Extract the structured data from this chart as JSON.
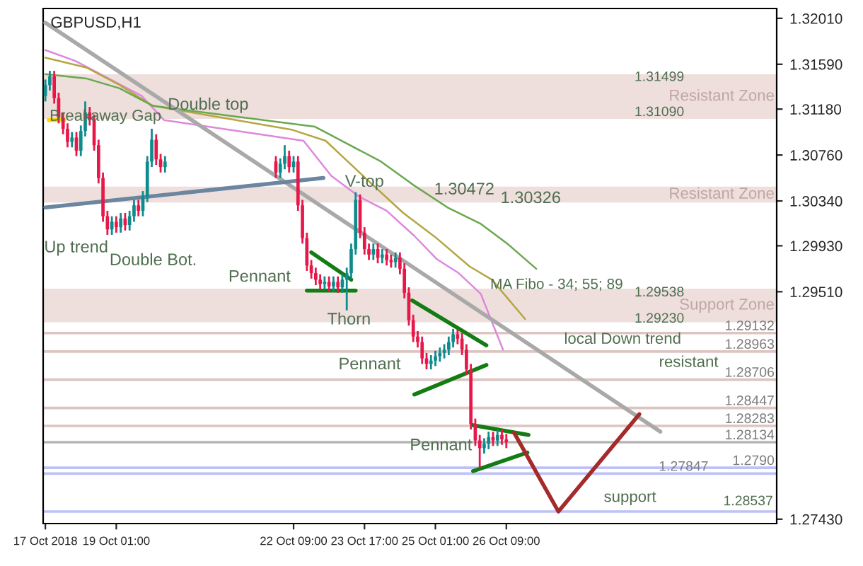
{
  "chart_data": {
    "type": "candlestick",
    "title": "GBPUSD,H1",
    "xlim": [
      "2018-10-17T16:00",
      "2018-10-31T11:00"
    ],
    "ylim": [
      1.2739,
      1.321
    ],
    "xticks": [
      {
        "value": "2018-10-17T17:00",
        "label": "17 Oct 2018"
      },
      {
        "value": "2018-10-19T01:00",
        "label": "19 Oct 01:00"
      },
      {
        "value": "2018-10-22T09:00",
        "label": "22 Oct 09:00"
      },
      {
        "value": "2018-10-23T17:00",
        "label": "23 Oct 17:00"
      },
      {
        "value": "2018-10-25T01:00",
        "label": "25 Oct 01:00"
      },
      {
        "value": "2018-10-26T09:00",
        "label": "26 Oct 09:00"
      }
    ],
    "yticks": [
      {
        "value": 1.3201,
        "label": "1.32010"
      },
      {
        "value": 1.3159,
        "label": "1.31590"
      },
      {
        "value": 1.3118,
        "label": "1.31180"
      },
      {
        "value": 1.3076,
        "label": "1.30760"
      },
      {
        "value": 1.3034,
        "label": "1.30340"
      },
      {
        "value": 1.2993,
        "label": "1.29930"
      },
      {
        "value": 1.2951,
        "label": "1.29510"
      },
      {
        "value": 1.2743,
        "label": "1.27430"
      }
    ],
    "grid": false,
    "legend": false,
    "series": [
      {
        "color": "#0f8b8d",
        "x": [
          "2018-10-17T17:00",
          "2018-10-17T19:00",
          "2018-10-18T05:00",
          "2018-10-18T09:00",
          "2018-10-18T11:00",
          "2018-10-18T23:00",
          "2018-10-19T03:00",
          "2018-10-19T07:00",
          "2018-10-19T09:00",
          "2018-10-19T13:00",
          "2018-10-19T15:00",
          "2018-10-19T17:00",
          "2018-10-19T23:00",
          "2018-10-22T03:00",
          "2018-10-22T05:00",
          "2018-10-22T09:00",
          "2018-10-22T23:00",
          "2018-10-23T03:00",
          "2018-10-23T07:00",
          "2018-10-23T09:00",
          "2018-10-23T11:00",
          "2018-10-23T13:00",
          "2018-10-23T21:00",
          "2018-10-24T01:00",
          "2018-10-24T07:00",
          "2018-10-24T23:00",
          "2018-10-25T01:00",
          "2018-10-25T03:00",
          "2018-10-25T05:00",
          "2018-10-25T07:00",
          "2018-10-25T09:00",
          "2018-10-25T23:00",
          "2018-10-26T01:00",
          "2018-10-26T05:00"
        ],
        "ohlc": [
          [
            1.313,
            1.3145,
            1.3125,
            1.314
          ],
          [
            1.314,
            1.3153,
            1.3135,
            1.3148
          ],
          [
            1.3088,
            1.3097,
            1.3083,
            1.3092
          ],
          [
            1.308,
            1.3103,
            1.3075,
            1.3098
          ],
          [
            1.3098,
            1.3125,
            1.3093,
            1.3115
          ],
          [
            1.3008,
            1.302,
            1.3003,
            1.3015
          ],
          [
            1.301,
            1.3023,
            1.3005,
            1.3018
          ],
          [
            1.3012,
            1.3025,
            1.3007,
            1.302
          ],
          [
            1.302,
            1.3035,
            1.3015,
            1.303
          ],
          [
            1.3025,
            1.3043,
            1.302,
            1.3038
          ],
          [
            1.3038,
            1.3075,
            1.3033,
            1.307
          ],
          [
            1.307,
            1.31,
            1.3065,
            1.309
          ],
          [
            1.3065,
            1.3075,
            1.306,
            1.307
          ],
          [
            1.306,
            1.3073,
            1.3055,
            1.3068
          ],
          [
            1.3068,
            1.3085,
            1.3063,
            1.3075
          ],
          [
            1.3065,
            1.3075,
            1.306,
            1.307
          ],
          [
            1.2958,
            1.2965,
            1.2953,
            1.296
          ],
          [
            1.2956,
            1.2965,
            1.2951,
            1.296
          ],
          [
            1.2955,
            1.2967,
            1.295,
            1.2962
          ],
          [
            1.2962,
            1.2973,
            1.2934,
            1.2968
          ],
          [
            1.2968,
            1.2995,
            1.2963,
            1.299
          ],
          [
            1.299,
            1.3042,
            1.2985,
            1.3035
          ],
          [
            1.2985,
            1.2995,
            1.298,
            1.299
          ],
          [
            1.2982,
            1.299,
            1.2977,
            1.2985
          ],
          [
            1.2978,
            1.2987,
            1.2973,
            1.2982
          ],
          [
            1.2885,
            1.2893,
            1.288,
            1.2888
          ],
          [
            1.2888,
            1.2897,
            1.2883,
            1.2892
          ],
          [
            1.2892,
            1.29,
            1.2887,
            1.2895
          ],
          [
            1.2895,
            1.2903,
            1.289,
            1.2898
          ],
          [
            1.2898,
            1.291,
            1.2893,
            1.2905
          ],
          [
            1.2905,
            1.2917,
            1.29,
            1.2912
          ],
          [
            1.2808,
            1.2817,
            1.2803,
            1.2812
          ],
          [
            1.2812,
            1.2823,
            1.2807,
            1.2818
          ],
          [
            1.2815,
            1.2825,
            1.281,
            1.282
          ]
        ]
      },
      {
        "color": "#e8174a",
        "x": [
          "2018-10-17T21:00",
          "2018-10-17T23:00",
          "2018-10-18T01:00",
          "2018-10-18T03:00",
          "2018-10-18T07:00",
          "2018-10-18T13:00",
          "2018-10-18T15:00",
          "2018-10-18T17:00",
          "2018-10-18T19:00",
          "2018-10-18T21:00",
          "2018-10-19T01:00",
          "2018-10-19T05:00",
          "2018-10-19T11:00",
          "2018-10-19T19:00",
          "2018-10-19T21:00",
          "2018-10-22T01:00",
          "2018-10-22T07:00",
          "2018-10-22T11:00",
          "2018-10-22T13:00",
          "2018-10-22T15:00",
          "2018-10-22T17:00",
          "2018-10-22T19:00",
          "2018-10-22T21:00",
          "2018-10-23T01:00",
          "2018-10-23T05:00",
          "2018-10-23T15:00",
          "2018-10-23T17:00",
          "2018-10-23T19:00",
          "2018-10-23T23:00",
          "2018-10-24T03:00",
          "2018-10-24T05:00",
          "2018-10-24T09:00",
          "2018-10-24T11:00",
          "2018-10-24T13:00",
          "2018-10-24T15:00",
          "2018-10-24T17:00",
          "2018-10-24T19:00",
          "2018-10-24T21:00",
          "2018-10-25T11:00",
          "2018-10-25T13:00",
          "2018-10-25T15:00",
          "2018-10-25T17:00",
          "2018-10-25T19:00",
          "2018-10-25T21:00",
          "2018-10-26T03:00",
          "2018-10-26T07:00",
          "2018-10-26T09:00"
        ],
        "ohlc": [
          [
            1.3148,
            1.3153,
            1.3123,
            1.3128
          ],
          [
            1.3128,
            1.3133,
            1.3105,
            1.311
          ],
          [
            1.311,
            1.3115,
            1.3095,
            1.31
          ],
          [
            1.31,
            1.3105,
            1.3083,
            1.3088
          ],
          [
            1.3092,
            1.3097,
            1.3075,
            1.308
          ],
          [
            1.3115,
            1.312,
            1.3103,
            1.3108
          ],
          [
            1.3108,
            1.3113,
            1.308,
            1.3085
          ],
          [
            1.3085,
            1.309,
            1.305,
            1.3055
          ],
          [
            1.3055,
            1.306,
            1.3015,
            1.302
          ],
          [
            1.302,
            1.3025,
            1.3003,
            1.3008
          ],
          [
            1.3015,
            1.302,
            1.3005,
            1.301
          ],
          [
            1.3018,
            1.3023,
            1.3007,
            1.3012
          ],
          [
            1.303,
            1.3035,
            1.302,
            1.3025
          ],
          [
            1.309,
            1.3095,
            1.3067,
            1.3072
          ],
          [
            1.3072,
            1.3077,
            1.306,
            1.3065
          ],
          [
            1.307,
            1.3075,
            1.3055,
            1.306
          ],
          [
            1.3075,
            1.308,
            1.306,
            1.3065
          ],
          [
            1.307,
            1.3075,
            1.3025,
            1.303
          ],
          [
            1.303,
            1.3035,
            1.2995,
            1.3
          ],
          [
            1.3,
            1.3005,
            1.297,
            1.2975
          ],
          [
            1.2975,
            1.298,
            1.2963,
            1.2968
          ],
          [
            1.2968,
            1.2973,
            1.2957,
            1.2962
          ],
          [
            1.2962,
            1.2967,
            1.2953,
            1.2958
          ],
          [
            1.296,
            1.2965,
            1.2951,
            1.2956
          ],
          [
            1.296,
            1.2965,
            1.295,
            1.2955
          ],
          [
            1.3035,
            1.304,
            1.3,
            1.3005
          ],
          [
            1.3005,
            1.301,
            1.2985,
            1.299
          ],
          [
            1.299,
            1.2995,
            1.298,
            1.2985
          ],
          [
            1.299,
            1.2995,
            1.2977,
            1.2982
          ],
          [
            1.2985,
            1.299,
            1.2975,
            1.298
          ],
          [
            1.298,
            1.2985,
            1.2973,
            1.2978
          ],
          [
            1.2982,
            1.2987,
            1.2967,
            1.2972
          ],
          [
            1.2972,
            1.2977,
            1.2945,
            1.295
          ],
          [
            1.295,
            1.2955,
            1.292,
            1.2925
          ],
          [
            1.2925,
            1.293,
            1.2905,
            1.291
          ],
          [
            1.291,
            1.2915,
            1.29,
            1.2905
          ],
          [
            1.2905,
            1.291,
            1.2885,
            1.289
          ],
          [
            1.289,
            1.2895,
            1.288,
            1.2885
          ],
          [
            1.2912,
            1.2917,
            1.2903,
            1.2908
          ],
          [
            1.2908,
            1.2913,
            1.2893,
            1.2898
          ],
          [
            1.2898,
            1.2903,
            1.2875,
            1.288
          ],
          [
            1.288,
            1.2885,
            1.2825,
            1.283
          ],
          [
            1.283,
            1.2835,
            1.281,
            1.2815
          ],
          [
            1.2815,
            1.282,
            1.279,
            1.2808
          ],
          [
            1.2818,
            1.2823,
            1.281,
            1.2815
          ],
          [
            1.282,
            1.2825,
            1.2811,
            1.2816
          ],
          [
            1.2816,
            1.2821,
            1.2808,
            1.28134
          ]
        ]
      },
      {
        "type": "line",
        "color": "#dd88dd",
        "x": [
          "2018-10-17T17:00",
          "2018-10-18T06:30",
          "2018-10-18T21:30",
          "2018-10-19T12:30",
          "2018-10-19T22:30",
          "2018-10-22T13:30",
          "2018-10-23T02:00",
          "2018-10-23T14:30",
          "2018-10-24T03:00",
          "2018-10-24T15:30",
          "2018-10-25T01:30",
          "2018-10-25T11:30",
          "2018-10-25T21:30",
          "2018-10-26T07:30"
        ],
        "values": [
          1.3172,
          1.3162,
          1.3146,
          1.313,
          1.3108,
          1.3089,
          1.3057,
          1.3038,
          1.3025,
          1.3002,
          1.2981,
          1.2968,
          1.2949,
          1.2898
        ]
      },
      {
        "type": "line",
        "color": "#b5a642",
        "x": [
          "2018-10-17T17:00",
          "2018-10-18T11:30",
          "2018-10-19T02:30",
          "2018-10-19T17:30",
          "2018-10-22T08:30",
          "2018-10-22T23:30",
          "2018-10-23T09:30",
          "2018-10-23T19:30",
          "2018-10-24T10:30",
          "2018-10-25T01:30",
          "2018-10-25T16:30",
          "2018-10-26T02:30",
          "2018-10-26T17:30"
        ],
        "values": [
          1.3165,
          1.3156,
          1.314,
          1.3121,
          1.3099,
          1.3089,
          1.307,
          1.3051,
          1.3023,
          1.3,
          1.2974,
          1.2962,
          1.2926
        ]
      },
      {
        "type": "line",
        "color": "#6aa84f",
        "x": [
          "2018-10-17T17:00",
          "2018-10-18T11:30",
          "2018-10-19T02:30",
          "2018-10-19T17:30",
          "2018-10-22T18:30",
          "2018-10-23T09:30",
          "2018-10-24T00:30",
          "2018-10-24T15:30",
          "2018-10-25T06:30",
          "2018-10-25T21:30",
          "2018-10-26T10:00",
          "2018-10-26T22:30"
        ],
        "values": [
          1.315,
          1.3146,
          1.3137,
          1.3121,
          1.3102,
          1.3086,
          1.307,
          1.3048,
          1.3028,
          1.3013,
          1.2994,
          1.2972
        ]
      },
      {
        "type": "line",
        "color": "#a9a9a9",
        "x": [
          "2018-10-17T17:00",
          "2018-10-29T06:30"
        ],
        "values": [
          1.3197,
          1.2823
        ]
      },
      {
        "type": "line",
        "color": "#6c86a0",
        "x": [
          "2018-10-17T17:00",
          "2018-10-22T22:30"
        ],
        "values": [
          1.3028,
          1.3055
        ]
      },
      {
        "type": "line",
        "color": "#ffd700",
        "x": [
          "2018-10-17T18:30",
          "2018-10-18T01:30"
        ],
        "values": [
          1.3108,
          1.3108
        ]
      },
      {
        "type": "line",
        "color": "#137c13",
        "x": [
          "2018-10-22T17:00",
          "2018-10-23T11:00"
        ],
        "values": [
          1.2987,
          1.2962
        ]
      },
      {
        "type": "line",
        "color": "#137c13",
        "x": [
          "2018-10-22T15:00",
          "2018-10-23T13:00"
        ],
        "values": [
          1.2952,
          1.2952
        ]
      },
      {
        "type": "line",
        "color": "#137c13",
        "x": [
          "2018-10-24T14:30",
          "2018-10-26T00:00"
        ],
        "values": [
          1.2943,
          1.2902
        ]
      },
      {
        "type": "line",
        "color": "#137c13",
        "x": [
          "2018-10-24T15:30",
          "2018-10-26T00:00"
        ],
        "values": [
          1.2857,
          1.2884
        ]
      },
      {
        "type": "line",
        "color": "#137c13",
        "x": [
          "2018-10-25T18:00",
          "2018-10-26T19:00"
        ],
        "values": [
          1.2829,
          1.282
        ]
      },
      {
        "type": "line",
        "color": "#137c13",
        "x": [
          "2018-10-25T18:00",
          "2018-10-26T18:30"
        ],
        "values": [
          1.2787,
          1.2804
        ]
      },
      {
        "type": "line",
        "color": "#a52a2a",
        "x": [
          "2018-10-26T12:30",
          "2018-10-27T08:30",
          "2018-10-28T21:00"
        ],
        "values": [
          1.2822,
          1.275,
          1.2839
        ]
      }
    ],
    "bands": [
      {
        "axis": "y",
        "from": 1.3109,
        "to": 1.31499,
        "label": "Resistant Zone",
        "color": "#eedfdd"
      },
      {
        "axis": "y",
        "from": 1.30326,
        "to": 1.30472,
        "label": "Resistant Zone",
        "color": "#eedfdd"
      },
      {
        "axis": "y",
        "from": 1.2923,
        "to": 1.29538,
        "label": "Support Zone",
        "color": "#eedfdd"
      }
    ],
    "ref_lines": [
      {
        "axis": "y",
        "value": 1.29132,
        "label": "1.29132",
        "color": "#dcc5c0"
      },
      {
        "axis": "y",
        "value": 1.28963,
        "label": "1.28963",
        "color": "#dcc5c0"
      },
      {
        "axis": "y",
        "value": 1.28706,
        "label": "1.28706",
        "color": "#dcc5c0"
      },
      {
        "axis": "y",
        "value": 1.28447,
        "label": "1.28447",
        "color": "#dcc5c0"
      },
      {
        "axis": "y",
        "value": 1.28283,
        "label": "1.28283",
        "color": "#dcc5c0"
      },
      {
        "axis": "y",
        "value": 1.28134,
        "label": "1.28134",
        "color": "#b4b4b4"
      },
      {
        "axis": "y",
        "value": 1.279,
        "label": "1.2790",
        "color": "#bcc2f7"
      },
      {
        "axis": "y",
        "value": 1.27847,
        "label": "1.27847",
        "color": "#bcc2f7"
      },
      {
        "axis": "y",
        "value": 1.275,
        "color": "#bcc2f7"
      }
    ],
    "annotations": [
      "Double top",
      "Double Bot.",
      "Up trend",
      {
        "text": "V-top",
        "x": "2018-10-23T17:00",
        "y": 1.3051
      },
      "Pennant",
      {
        "text": "Thorn",
        "x": "2018-10-23T10:00",
        "y": 1.2925
      },
      "Pennant",
      {
        "text": "Pennant",
        "x": "2018-10-25T03:30",
        "y": 1.281
      },
      "Breakaway Gap",
      "MA Fibo - 34; 55; 89",
      "local Down trend",
      "resistant",
      "support",
      "1.28537",
      "1.31499",
      "1.31090",
      {
        "text": "1.30472",
        "x": "2018-10-25T14:00",
        "y": 1.3044
      },
      {
        "text": "1.30326",
        "x": "2018-10-26T20:00",
        "y": 1.3036
      },
      "1.29538",
      "1.29230"
    ]
  }
}
